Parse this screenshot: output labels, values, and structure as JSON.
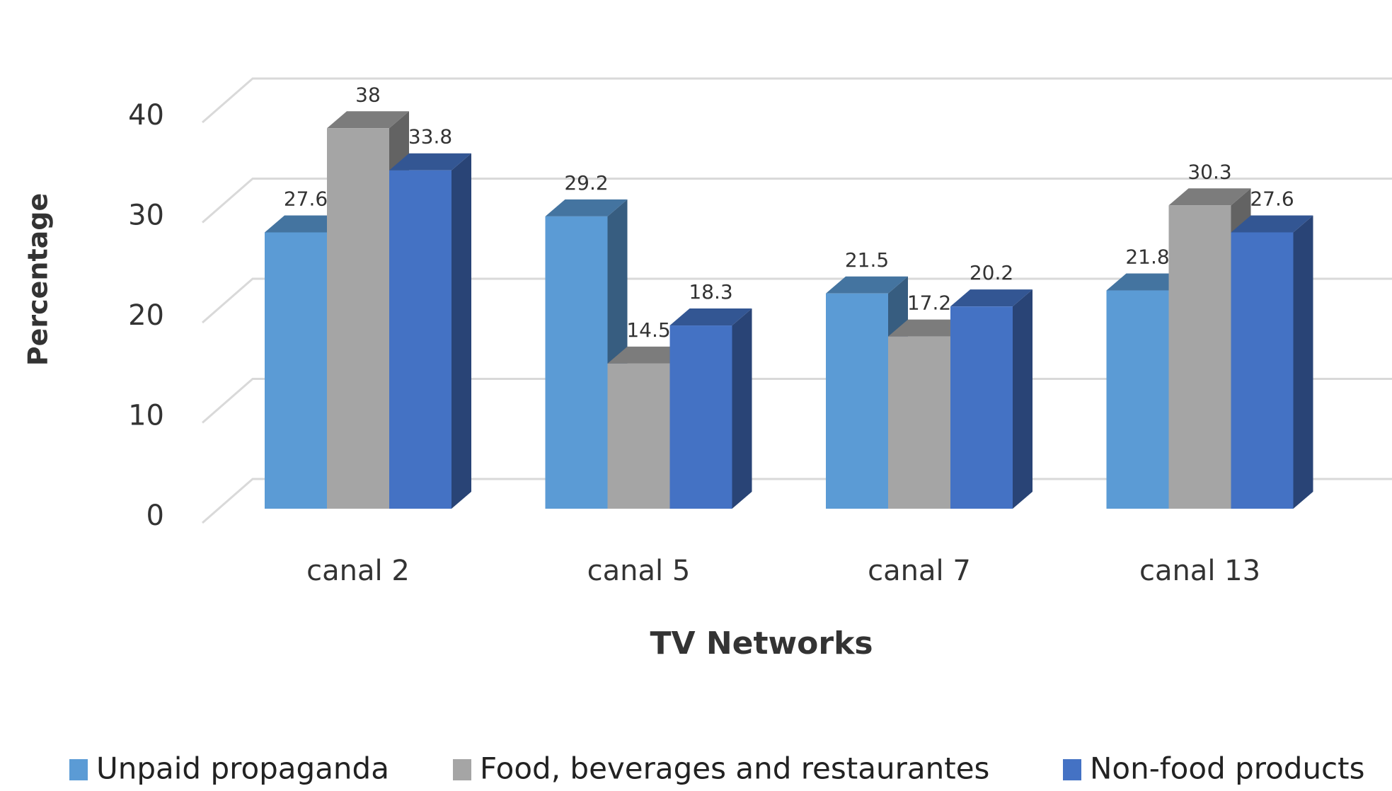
{
  "chart_data": {
    "type": "bar3d",
    "x_label": "TV Networks",
    "y_label": "Percentage",
    "categories": [
      "canal 2",
      "canal 5",
      "canal 7",
      "canal 13"
    ],
    "series": [
      {
        "name": "Unpaid propaganda",
        "color": "#5b9bd5",
        "values": [
          27.6,
          29.2,
          21.5,
          21.8
        ]
      },
      {
        "name": "Food, beverages and restaurantes",
        "color": "#a5a5a5",
        "values": [
          38,
          14.5,
          17.2,
          30.3
        ]
      },
      {
        "name": "Non-food products",
        "color": "#4472c4",
        "values": [
          33.8,
          18.3,
          20.2,
          27.6
        ]
      }
    ],
    "ylim": [
      0,
      40
    ],
    "yticks": [
      0,
      10,
      20,
      30,
      40
    ],
    "grid": true,
    "legend": "bottom"
  }
}
